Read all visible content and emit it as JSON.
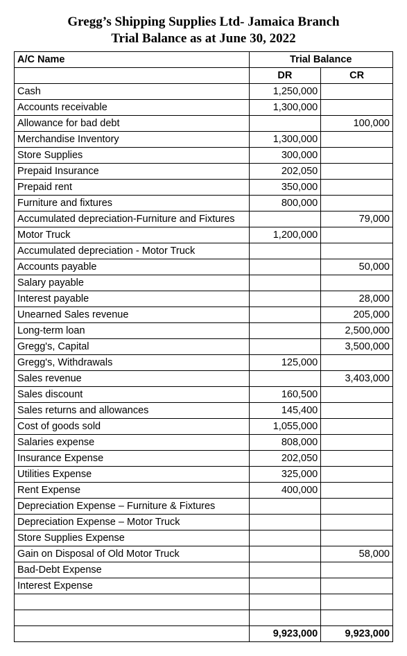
{
  "title_line1": "Gregg’s Shipping Supplies Ltd- Jamaica Branch",
  "title_line2": "Trial Balance as at June 30, 2022",
  "headers": {
    "ac_name": "A/C Name",
    "trial_balance": "Trial Balance",
    "dr": "DR",
    "cr": "CR"
  },
  "rows": [
    {
      "name": "Cash",
      "dr": "1,250,000",
      "cr": ""
    },
    {
      "name": "Accounts receivable",
      "dr": "1,300,000",
      "cr": ""
    },
    {
      "name": "Allowance for bad debt",
      "dr": "",
      "cr": "100,000"
    },
    {
      "name": "Merchandise Inventory",
      "dr": "1,300,000",
      "cr": ""
    },
    {
      "name": "Store Supplies",
      "dr": "300,000",
      "cr": ""
    },
    {
      "name": "Prepaid Insurance",
      "dr": "202,050",
      "cr": ""
    },
    {
      "name": "Prepaid rent",
      "dr": "350,000",
      "cr": ""
    },
    {
      "name": "Furniture and fixtures",
      "dr": "800,000",
      "cr": ""
    },
    {
      "name": "Accumulated depreciation-Furniture and Fixtures",
      "dr": "",
      "cr": "79,000"
    },
    {
      "name": "Motor Truck",
      "dr": "1,200,000",
      "cr": ""
    },
    {
      "name": "Accumulated depreciation - Motor Truck",
      "dr": "",
      "cr": ""
    },
    {
      "name": "Accounts payable",
      "dr": "",
      "cr": "50,000"
    },
    {
      "name": "Salary payable",
      "dr": "",
      "cr": ""
    },
    {
      "name": "Interest payable",
      "dr": "",
      "cr": "28,000"
    },
    {
      "name": "Unearned Sales revenue",
      "dr": "",
      "cr": "205,000"
    },
    {
      "name": "Long-term loan",
      "dr": "",
      "cr": "2,500,000"
    },
    {
      "name": "Gregg's, Capital",
      "dr": "",
      "cr": "3,500,000"
    },
    {
      "name": "Gregg's, Withdrawals",
      "dr": "125,000",
      "cr": ""
    },
    {
      "name": "Sales revenue",
      "dr": "",
      "cr": "3,403,000"
    },
    {
      "name": "Sales discount",
      "dr": "160,500",
      "cr": ""
    },
    {
      "name": "Sales returns and allowances",
      "dr": "145,400",
      "cr": ""
    },
    {
      "name": "Cost of goods sold",
      "dr": "1,055,000",
      "cr": ""
    },
    {
      "name": "Salaries expense",
      "dr": "808,000",
      "cr": ""
    },
    {
      "name": "Insurance Expense",
      "dr": "202,050",
      "cr": ""
    },
    {
      "name": "Utilities Expense",
      "dr": "325,000",
      "cr": ""
    },
    {
      "name": "Rent Expense",
      "dr": "400,000",
      "cr": ""
    },
    {
      "name": "Depreciation Expense – Furniture & Fixtures",
      "dr": "",
      "cr": ""
    },
    {
      "name": "Depreciation Expense – Motor Truck",
      "dr": "",
      "cr": ""
    },
    {
      "name": "Store Supplies Expense",
      "dr": "",
      "cr": ""
    },
    {
      "name": "Gain on Disposal of Old Motor Truck",
      "dr": "",
      "cr": "58,000"
    },
    {
      "name": "Bad-Debt Expense",
      "dr": "",
      "cr": ""
    },
    {
      "name": "Interest Expense",
      "dr": "",
      "cr": ""
    }
  ],
  "blank_rows": 2,
  "totals": {
    "dr": "9,923,000",
    "cr": "9,923,000"
  },
  "style": {
    "title_font": "Times New Roman",
    "title_fontsize": 19,
    "body_font": "Arial",
    "body_fontsize": 14.5,
    "border_color": "#000000",
    "background_color": "#ffffff",
    "col_widths_pct": [
      62,
      19,
      19
    ]
  }
}
